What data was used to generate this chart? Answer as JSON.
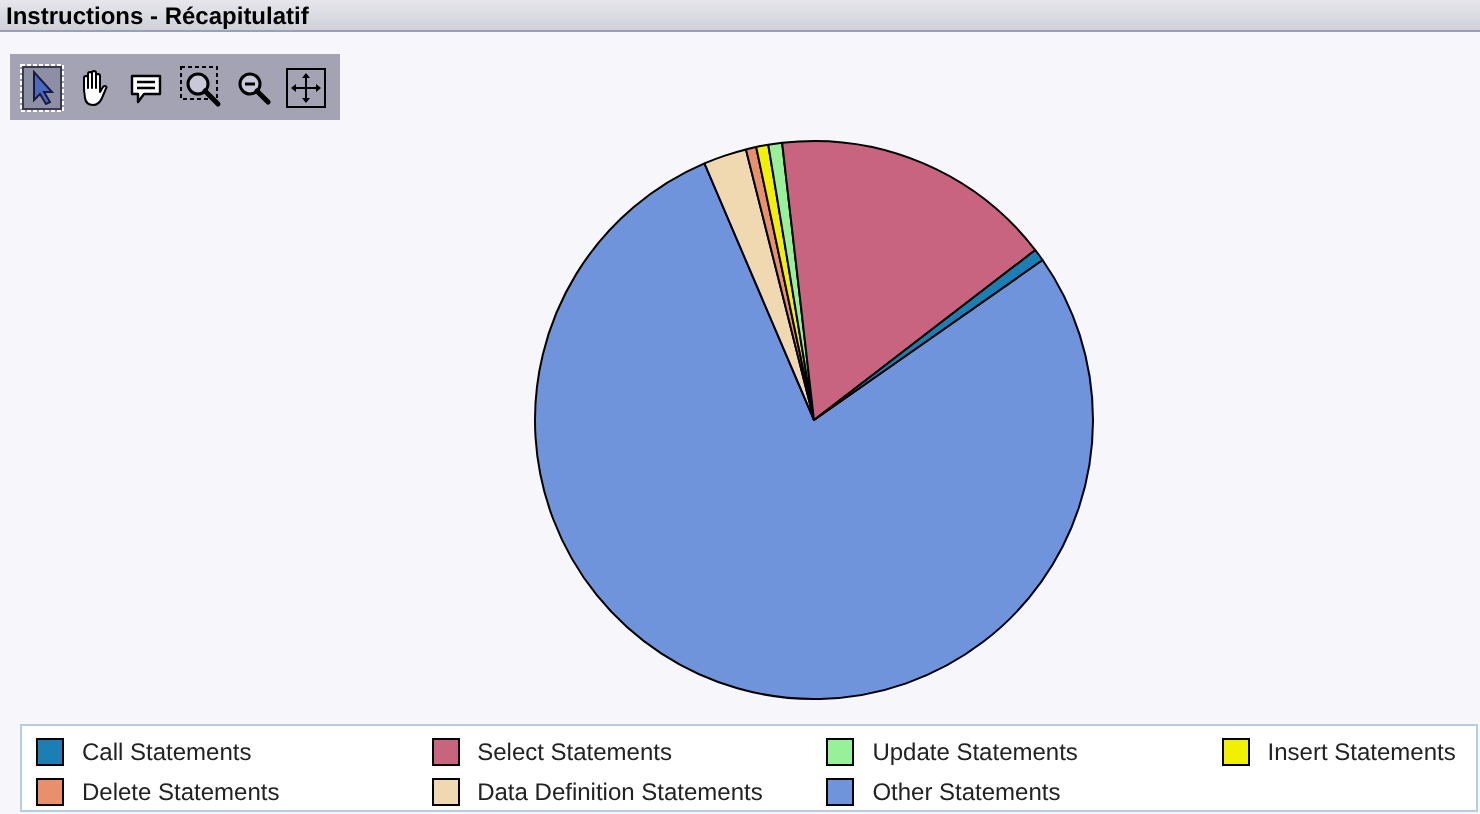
{
  "chart_data": {
    "type": "pie",
    "title": "Instructions - Récapitulatif",
    "categories": [
      "Call Statements",
      "Select Statements",
      "Update Statements",
      "Insert Statements",
      "Delete Statements",
      "Data Definition Statements",
      "Other Statements"
    ],
    "values": [
      0.7,
      16.4,
      0.8,
      0.7,
      0.6,
      2.5,
      78.3
    ],
    "colors": [
      "#1b7fb5",
      "#c8647f",
      "#98f098",
      "#f0f000",
      "#e8906c",
      "#f0d9b0",
      "#6f94dc"
    ],
    "legend": "bottom"
  }
}
